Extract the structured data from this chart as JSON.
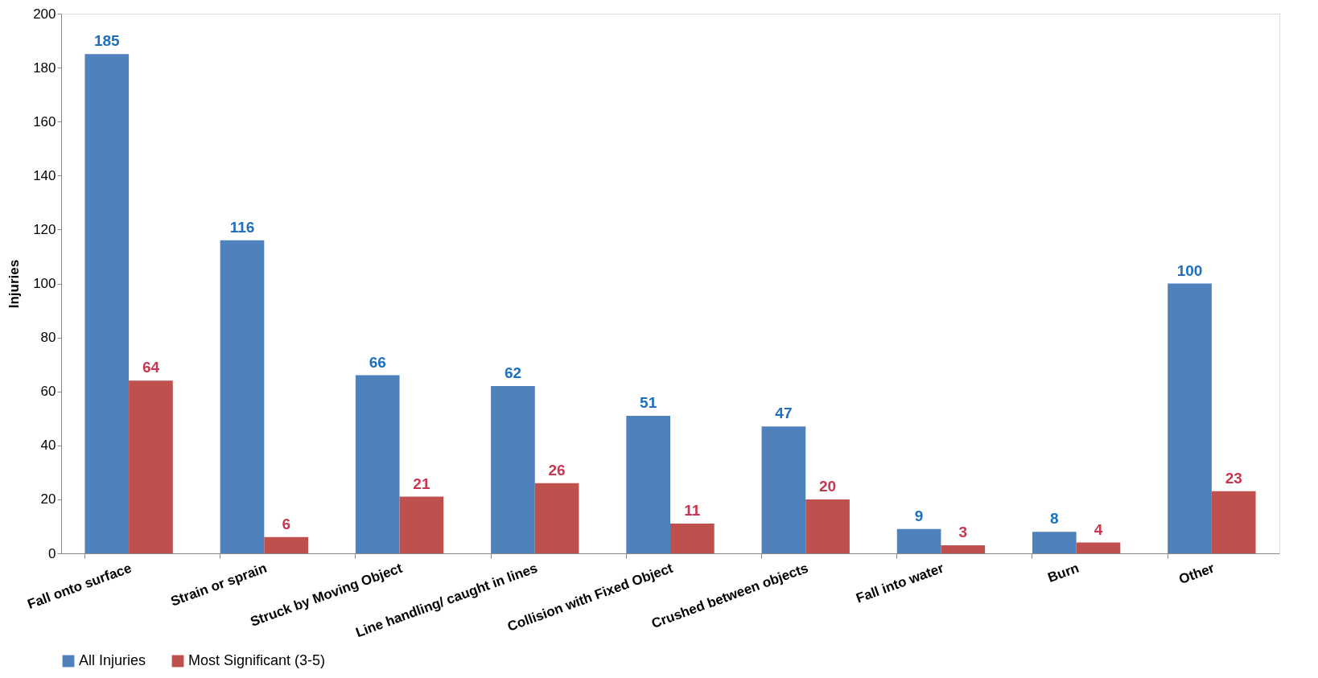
{
  "chart_data": {
    "type": "bar",
    "ylabel": "Injuries",
    "categories": [
      "Fall onto surface",
      "Strain or sprain",
      "Struck by Moving Object",
      "Line handling/ caught in lines",
      "Collision with Fixed Object",
      "Crushed between objects",
      "Fall into water",
      "Burn",
      "Other"
    ],
    "series": [
      {
        "name": "All Injuries",
        "color": "#4f81bd",
        "values": [
          185,
          116,
          66,
          62,
          51,
          47,
          9,
          8,
          100
        ]
      },
      {
        "name": "Most Significant (3-5)",
        "color": "#c0504d",
        "values": [
          64,
          6,
          21,
          26,
          11,
          20,
          3,
          4,
          23
        ]
      }
    ],
    "ylim": [
      0,
      200
    ],
    "yticks": [
      0,
      20,
      40,
      60,
      80,
      100,
      120,
      140,
      160,
      180,
      200
    ],
    "data_labels": true,
    "grid": false,
    "legend": "bottom"
  }
}
